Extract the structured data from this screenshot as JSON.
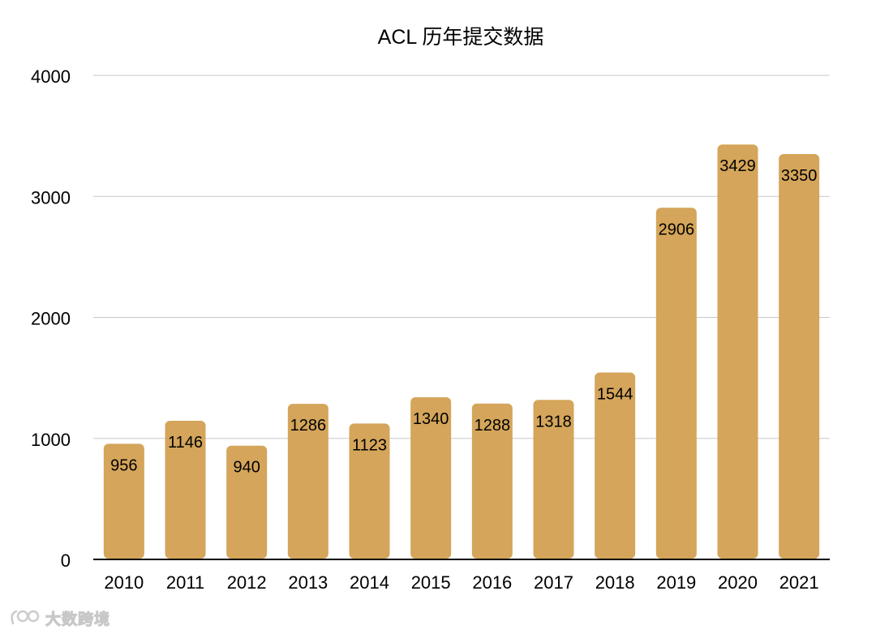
{
  "chart_data": {
    "type": "bar",
    "title": "ACL 历年提交数据",
    "categories": [
      "2010",
      "2011",
      "2012",
      "2013",
      "2014",
      "2015",
      "2016",
      "2017",
      "2018",
      "2019",
      "2020",
      "2021"
    ],
    "values": [
      956,
      1146,
      940,
      1286,
      1123,
      1340,
      1288,
      1318,
      1544,
      2906,
      3429,
      3350
    ],
    "xlabel": "",
    "ylabel": "",
    "ylim": [
      0,
      4000
    ],
    "yticks": [
      "0",
      "1000",
      "2000",
      "3000",
      "4000"
    ],
    "grid": true,
    "legend": "none",
    "bar_color": "#d4a55a",
    "grid_color": "#c8c8c8",
    "axis_color": "#000000"
  },
  "watermark": {
    "text": "大数跨境",
    "icon": "logo-icon"
  }
}
